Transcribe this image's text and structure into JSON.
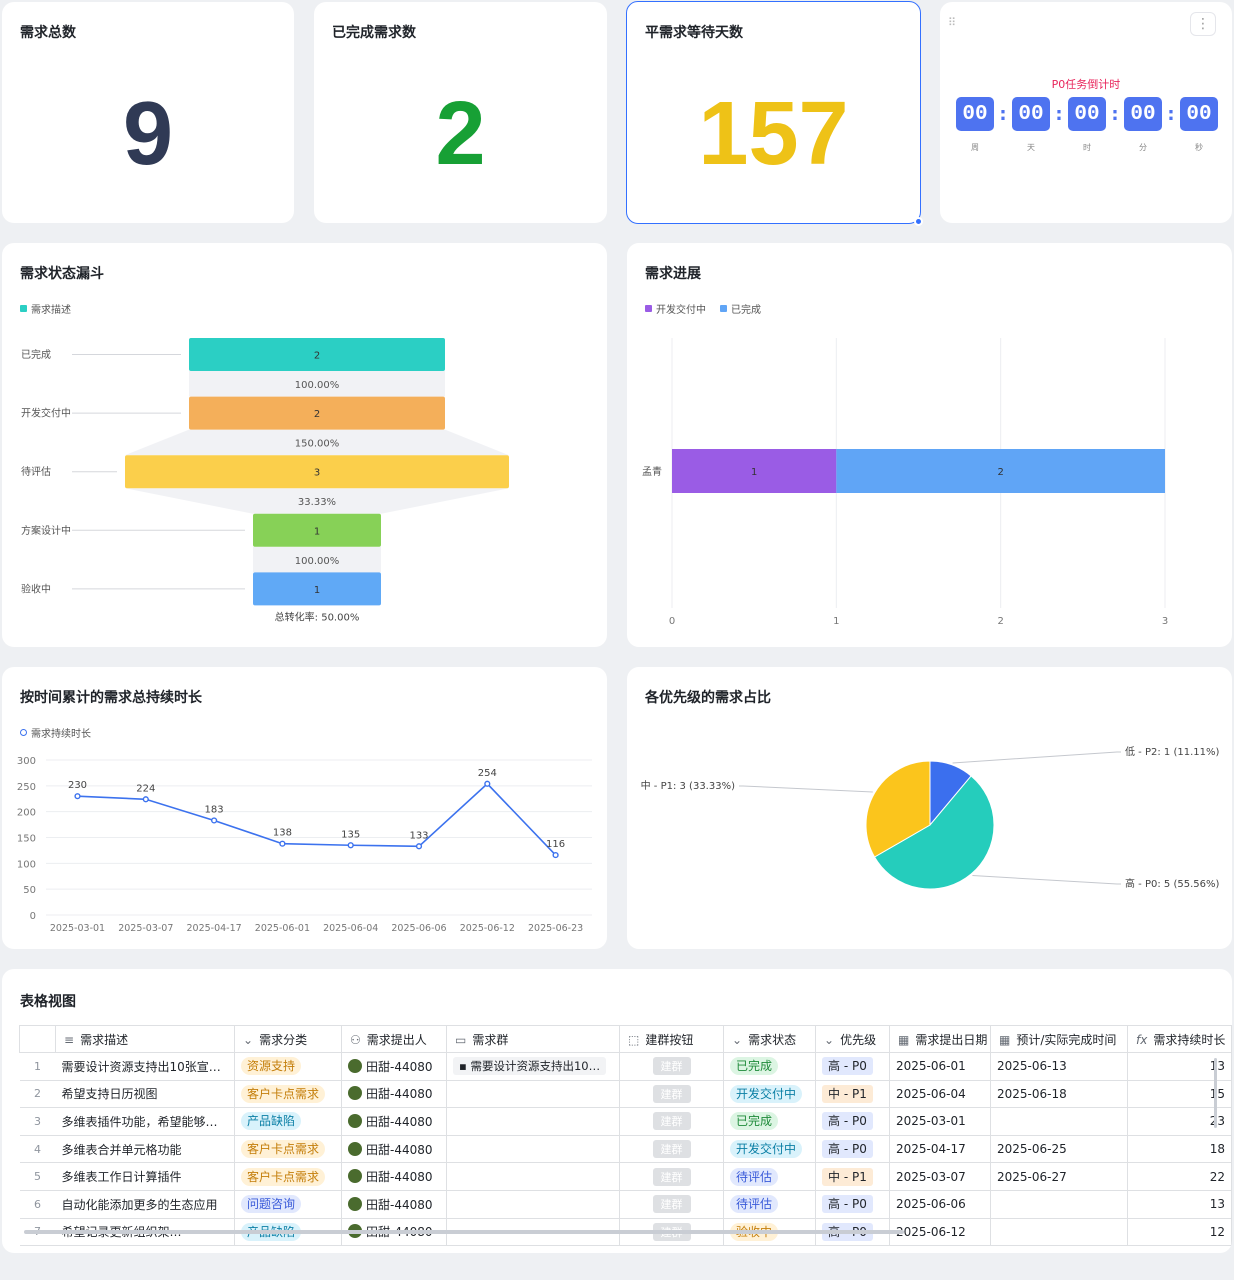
{
  "kpis": [
    {
      "title": "需求总数",
      "value": "9",
      "color": "#303a55"
    },
    {
      "title": "已完成需求数",
      "value": "2",
      "color": "#17a035"
    },
    {
      "title": "平需求等待天数",
      "value": "157",
      "color": "#eec217"
    }
  ],
  "countdown": {
    "title": "P0任务倒计时",
    "units": [
      {
        "value": "00",
        "label": "周"
      },
      {
        "value": "00",
        "label": "天"
      },
      {
        "value": "00",
        "label": "时"
      },
      {
        "value": "00",
        "label": "分"
      },
      {
        "value": "00",
        "label": "秒"
      }
    ],
    "more_icon": "more-vertical-icon",
    "drag_icon": "drag-handle-icon"
  },
  "funnel": {
    "title": "需求状态漏斗",
    "legend": "需求描述",
    "legend_color": "#2bcfc4",
    "stages": [
      {
        "label": "已完成",
        "value": "2",
        "color": "#2bcfc4",
        "rate": "100.00%"
      },
      {
        "label": "开发交付中",
        "value": "2",
        "color": "#f4af5a",
        "rate": "150.00%"
      },
      {
        "label": "待评估",
        "value": "3",
        "color": "#fbcf4b",
        "rate": "33.33%"
      },
      {
        "label": "方案设计中",
        "value": "1",
        "color": "#87d157",
        "rate": "100.00%"
      },
      {
        "label": "验收中",
        "value": "1",
        "color": "#60a9f6",
        "rate": ""
      }
    ],
    "total": "总转化率: 50.00%"
  },
  "progress": {
    "title": "需求进展",
    "legend": [
      {
        "name": "开发交付中",
        "color": "#9a5ce5"
      },
      {
        "name": "已完成",
        "color": "#60a5f6"
      }
    ]
  },
  "line": {
    "title": "按时间累计的需求总持续时长",
    "legend": "需求持续时长"
  },
  "pie": {
    "title": "各优先级的需求占比",
    "labels": [
      "低 - P2: 1 (11.11%)",
      "中 - P1: 3 (33.33%)",
      "高 - P0: 5 (55.56%)"
    ]
  },
  "table": {
    "title": "表格视图",
    "columns": [
      {
        "label": "需求描述",
        "icon": "text-icon"
      },
      {
        "label": "需求分类",
        "icon": "single-select-icon"
      },
      {
        "label": "需求提出人",
        "icon": "person-icon"
      },
      {
        "label": "需求群",
        "icon": "group-chat-icon"
      },
      {
        "label": "建群按钮",
        "icon": "button-icon"
      },
      {
        "label": "需求状态",
        "icon": "single-select-icon"
      },
      {
        "label": "优先级",
        "icon": "single-select-icon"
      },
      {
        "label": "需求提出日期",
        "icon": "calendar-icon"
      },
      {
        "label": "预计/实际完成时间",
        "icon": "calendar-icon"
      },
      {
        "label": "需求持续时长",
        "icon": "formula-icon"
      }
    ],
    "rows": [
      {
        "idx": "1",
        "desc": "需要设计资源支持出10张宣…",
        "cat": "资源支持",
        "cat_color": "#fff1d6",
        "cat_text": "#c47e0a",
        "person": "田甜-44080",
        "group": "需要设计资源支持出10…",
        "btn": "建群",
        "status": "已完成",
        "status_bg": "#dcf5e3",
        "status_fg": "#1f8b3a",
        "prio": "高 - P0",
        "prio_bg": "#e1e8fd",
        "start": "2025-06-01",
        "end": "2025-06-13",
        "dur": "13"
      },
      {
        "idx": "2",
        "desc": "希望支持日历视图",
        "cat": "客户卡点需求",
        "cat_color": "#fff1d6",
        "cat_text": "#c47e0a",
        "person": "田甜-44080",
        "group": "",
        "btn": "建群",
        "status": "开发交付中",
        "status_bg": "#d9f2fb",
        "status_fg": "#0b7fa5",
        "prio": "中 - P1",
        "prio_bg": "#fdebd6",
        "start": "2025-06-04",
        "end": "2025-06-18",
        "dur": "15"
      },
      {
        "idx": "3",
        "desc": "多维表插件功能，希望能够…",
        "cat": "产品缺陷",
        "cat_color": "#d9f2fb",
        "cat_text": "#0b7fa5",
        "person": "田甜-44080",
        "group": "",
        "btn": "建群",
        "status": "已完成",
        "status_bg": "#dcf5e3",
        "status_fg": "#1f8b3a",
        "prio": "高 - P0",
        "prio_bg": "#e1e8fd",
        "start": "2025-03-01",
        "end": "",
        "dur": "23"
      },
      {
        "idx": "4",
        "desc": "多维表合并单元格功能",
        "cat": "客户卡点需求",
        "cat_color": "#fff1d6",
        "cat_text": "#c47e0a",
        "person": "田甜-44080",
        "group": "",
        "btn": "建群",
        "status": "开发交付中",
        "status_bg": "#d9f2fb",
        "status_fg": "#0b7fa5",
        "prio": "高 - P0",
        "prio_bg": "#e1e8fd",
        "start": "2025-04-17",
        "end": "2025-06-25",
        "dur": "18"
      },
      {
        "idx": "5",
        "desc": "多维表工作日计算插件",
        "cat": "客户卡点需求",
        "cat_color": "#fff1d6",
        "cat_text": "#c47e0a",
        "person": "田甜-44080",
        "group": "",
        "btn": "建群",
        "status": "待评估",
        "status_bg": "#e1e8fd",
        "status_fg": "#3a5bd9",
        "prio": "中 - P1",
        "prio_bg": "#fdebd6",
        "start": "2025-03-07",
        "end": "2025-06-27",
        "dur": "22"
      },
      {
        "idx": "6",
        "desc": "自动化能添加更多的生态应用",
        "cat": "问题咨询",
        "cat_color": "#e1e8fd",
        "cat_text": "#3a5bd9",
        "person": "田甜-44080",
        "group": "",
        "btn": "建群",
        "status": "待评估",
        "status_bg": "#e1e8fd",
        "status_fg": "#3a5bd9",
        "prio": "高 - P0",
        "prio_bg": "#e1e8fd",
        "start": "2025-06-06",
        "end": "",
        "dur": "13"
      },
      {
        "idx": "7",
        "desc": "希望记录更新组织架…",
        "cat": "产品缺陷",
        "cat_color": "#d9f2fb",
        "cat_text": "#0b7fa5",
        "person": "田甜-44080",
        "group": "",
        "btn": "建群",
        "status": "验收中",
        "status_bg": "#fff1d6",
        "status_fg": "#c47e0a",
        "prio": "高 - P0",
        "prio_bg": "#e1e8fd",
        "start": "2025-06-12",
        "end": "",
        "dur": "12"
      }
    ]
  },
  "chart_data": [
    {
      "type": "funnel",
      "title": "需求状态漏斗",
      "categories": [
        "已完成",
        "开发交付中",
        "待评估",
        "方案设计中",
        "验收中"
      ],
      "values": [
        2,
        2,
        3,
        1,
        1
      ],
      "rates": [
        "100.00%",
        "150.00%",
        "33.33%",
        "100.00%"
      ],
      "total_rate": "总转化率: 50.00%",
      "legend": [
        "需求描述"
      ]
    },
    {
      "type": "bar",
      "orientation": "horizontal",
      "stacked": true,
      "title": "需求进展",
      "categories": [
        "孟青"
      ],
      "series": [
        {
          "name": "开发交付中",
          "values": [
            1
          ],
          "color": "#9a5ce5"
        },
        {
          "name": "已完成",
          "values": [
            2
          ],
          "color": "#60a5f6"
        }
      ],
      "xlim": [
        0,
        3
      ],
      "xticks": [
        "0",
        "1",
        "2",
        "3"
      ],
      "legend_position": "top-left",
      "grid": true
    },
    {
      "type": "line",
      "title": "按时间累计的需求总持续时长",
      "x": [
        "2025-03-01",
        "2025-03-07",
        "2025-04-17",
        "2025-06-01",
        "2025-06-04",
        "2025-06-06",
        "2025-06-12",
        "2025-06-23"
      ],
      "series": [
        {
          "name": "需求持续时长",
          "values": [
            230,
            224,
            183,
            138,
            135,
            133,
            254,
            116
          ],
          "color": "#3c72ee"
        }
      ],
      "ylim": [
        0,
        300
      ],
      "yticks": [
        "0",
        "50",
        "100",
        "150",
        "200",
        "250",
        "300"
      ],
      "grid": true,
      "legend_position": "top-left"
    },
    {
      "type": "pie",
      "title": "各优先级的需求占比",
      "categories": [
        "低 - P2",
        "高 - P0",
        "中 - P1"
      ],
      "values": [
        1,
        5,
        3
      ],
      "percents": [
        "11.11%",
        "55.56%",
        "33.33%"
      ],
      "colors": [
        "#3b6fee",
        "#25cdbc",
        "#fbc51c"
      ]
    }
  ]
}
